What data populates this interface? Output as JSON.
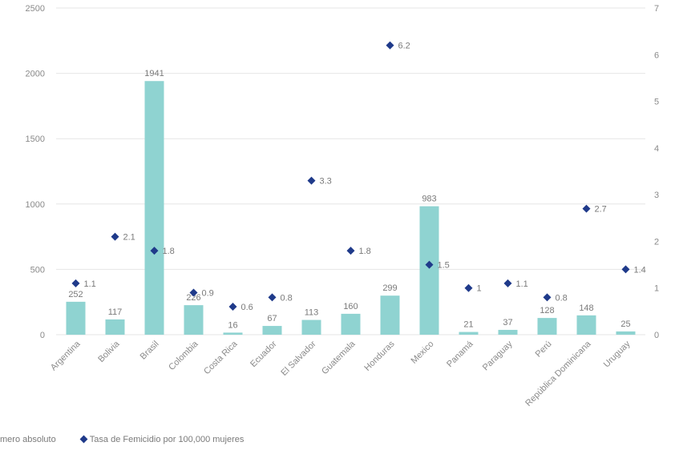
{
  "chart_data": {
    "type": "bar",
    "categories": [
      "Argentina",
      "Bolivia",
      "Brasil",
      "Colombia",
      "Costa Rica",
      "Ecuador",
      "El Salvador",
      "Guatemala",
      "Honduras",
      "Mexico",
      "Panamá",
      "Paraguay",
      "Perú",
      "República Dominicana",
      "Uruguay"
    ],
    "series": [
      {
        "name": "Número absoluto",
        "type": "bar",
        "axis": "left",
        "color": "#8fd3d1",
        "values": [
          252,
          117,
          1941,
          226,
          16,
          67,
          113,
          160,
          299,
          983,
          21,
          37,
          128,
          148,
          25
        ],
        "labels": [
          "252",
          "117",
          "1941",
          "226",
          "16",
          "67",
          "113",
          "160",
          "299",
          "983",
          "21",
          "37",
          "128",
          "148",
          "25"
        ]
      },
      {
        "name": "Tasa de Femicidio por 100,000 mujeres",
        "type": "scatter",
        "axis": "right",
        "color": "#1f3a8a",
        "values": [
          1.1,
          2.1,
          1.8,
          0.9,
          0.6,
          0.8,
          3.3,
          1.8,
          6.2,
          1.5,
          1,
          1.1,
          0.8,
          2.7,
          1.4
        ],
        "labels": [
          "1.1",
          "2.1",
          "1.8",
          "0.9",
          "0.6",
          "0.8",
          "3.3",
          "1.8",
          "6.2",
          "1.5",
          "1",
          "1.1",
          "0.8",
          "2.7",
          "1.4"
        ]
      }
    ],
    "y_left": {
      "range": [
        0,
        2500
      ],
      "ticks": [
        "0",
        "500",
        "1000",
        "1500",
        "2000",
        "2500"
      ]
    },
    "y_right": {
      "range": [
        0,
        7
      ],
      "ticks": [
        "0",
        "1",
        "2",
        "3",
        "4",
        "5",
        "6",
        "7"
      ]
    },
    "grid": true,
    "legend_position": "bottom-left"
  },
  "legend": {
    "bar_label": "mero absoluto",
    "marker_label": "Tasa de Femicidio por 100,000 mujeres"
  }
}
